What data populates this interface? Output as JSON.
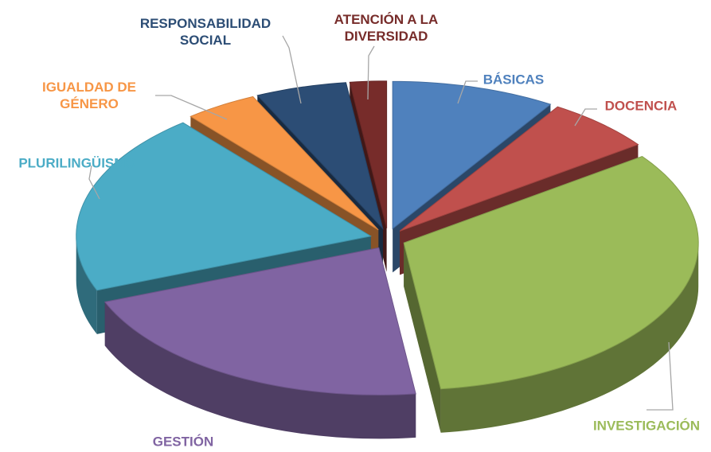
{
  "chart_data": {
    "type": "pie3d",
    "categories": [
      "BÁSICAS",
      "DOCENCIA",
      "INVESTIGACIÓN",
      "GESTIÓN",
      "PLURILINGÜISMO",
      "IGUALDAD DE GÉNERO",
      "RESPONSABILIDAD SOCIAL",
      "ATENCIÓN A LA DIVERSIDAD"
    ],
    "values": [
      9,
      6,
      33,
      21,
      20,
      4,
      5,
      2
    ],
    "colors": [
      "#4f81bd",
      "#c0504d",
      "#9bbb59",
      "#8064a2",
      "#4bacc6",
      "#f79646",
      "#2c4d75",
      "#772c2a"
    ]
  }
}
